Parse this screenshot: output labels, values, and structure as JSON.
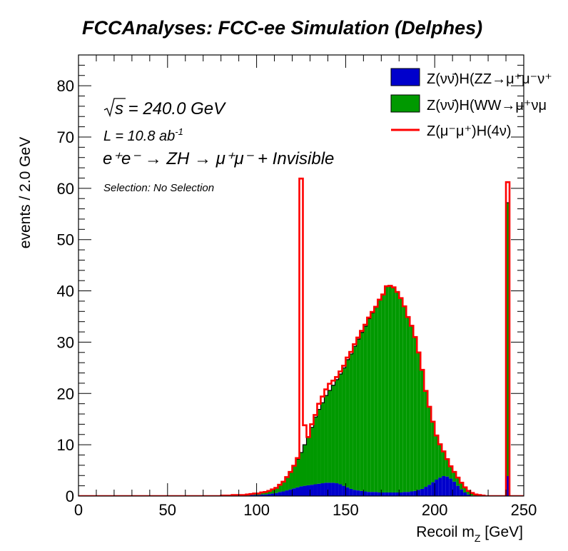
{
  "chart_data": {
    "type": "histogram",
    "title": "FCCAnalyses: FCC-ee Simulation (Delphes)",
    "xlabel_main": "Recoil m",
    "xlabel_sub": "Z",
    "xlabel_unit": " [GeV]",
    "ylabel": "events / 2.0 GeV",
    "xlim": [
      0,
      250
    ],
    "ylim": [
      0,
      86
    ],
    "x_ticks": [
      "0",
      "50",
      "100",
      "150",
      "200",
      "250"
    ],
    "y_ticks": [
      "0",
      "10",
      "20",
      "30",
      "40",
      "50",
      "60",
      "70",
      "80"
    ],
    "bin_width": 2.0,
    "stacked": true,
    "annotations": {
      "sqrt_s": "s",
      "energy": " = 240.0 GeV",
      "lumi": "L = 10.8 ab",
      "lumi_exp": "-1",
      "process": "e⁺e⁻ → ZH → μ⁺μ⁻ + Invisible",
      "selection": "Selection: No Selection"
    },
    "series": [
      {
        "name": "Z(νν̄)H(ZZ→μ⁺μ⁻ν⁺",
        "style": "fill",
        "color": "#0000cc",
        "bins": [
          [
            80,
            0.1
          ],
          [
            82,
            0.1
          ],
          [
            84,
            0.1
          ],
          [
            86,
            0.1
          ],
          [
            88,
            0.1
          ],
          [
            90,
            0.1
          ],
          [
            92,
            0.1
          ],
          [
            94,
            0.1
          ],
          [
            96,
            0.2
          ],
          [
            98,
            0.2
          ],
          [
            100,
            0.2
          ],
          [
            102,
            0.3
          ],
          [
            104,
            0.3
          ],
          [
            106,
            0.4
          ],
          [
            108,
            0.5
          ],
          [
            110,
            0.6
          ],
          [
            112,
            0.8
          ],
          [
            114,
            0.9
          ],
          [
            116,
            1.1
          ],
          [
            118,
            1.3
          ],
          [
            120,
            1.5
          ],
          [
            122,
            1.7
          ],
          [
            124,
            1.9
          ],
          [
            126,
            2.0
          ],
          [
            128,
            2.1
          ],
          [
            130,
            2.2
          ],
          [
            132,
            2.3
          ],
          [
            134,
            2.4
          ],
          [
            136,
            2.5
          ],
          [
            138,
            2.6
          ],
          [
            140,
            2.6
          ],
          [
            142,
            2.6
          ],
          [
            144,
            2.5
          ],
          [
            146,
            2.3
          ],
          [
            148,
            2.0
          ],
          [
            150,
            1.7
          ],
          [
            152,
            1.4
          ],
          [
            154,
            1.2
          ],
          [
            156,
            1.1
          ],
          [
            158,
            1.0
          ],
          [
            160,
            0.9
          ],
          [
            162,
            0.8
          ],
          [
            164,
            0.8
          ],
          [
            166,
            0.8
          ],
          [
            168,
            0.7
          ],
          [
            170,
            0.7
          ],
          [
            172,
            0.7
          ],
          [
            174,
            0.7
          ],
          [
            176,
            0.7
          ],
          [
            178,
            0.7
          ],
          [
            180,
            0.7
          ],
          [
            182,
            0.8
          ],
          [
            184,
            0.8
          ],
          [
            186,
            0.9
          ],
          [
            188,
            1.0
          ],
          [
            190,
            1.2
          ],
          [
            192,
            1.4
          ],
          [
            194,
            1.8
          ],
          [
            196,
            2.2
          ],
          [
            198,
            2.7
          ],
          [
            200,
            3.2
          ],
          [
            202,
            3.6
          ],
          [
            204,
            3.9
          ],
          [
            206,
            3.8
          ],
          [
            208,
            3.4
          ],
          [
            210,
            2.8
          ],
          [
            212,
            2.0
          ],
          [
            214,
            1.3
          ],
          [
            216,
            0.7
          ],
          [
            218,
            0.3
          ],
          [
            220,
            0.1
          ],
          [
            240,
            3.9
          ]
        ]
      },
      {
        "name": "Z(νν̄)H(WW→μ⁺νμ",
        "style": "fill",
        "color": "#009900",
        "bins": [
          [
            80,
            0.0
          ],
          [
            82,
            0.0
          ],
          [
            84,
            0.0
          ],
          [
            86,
            0.1
          ],
          [
            88,
            0.1
          ],
          [
            90,
            0.1
          ],
          [
            92,
            0.1
          ],
          [
            94,
            0.2
          ],
          [
            96,
            0.2
          ],
          [
            98,
            0.3
          ],
          [
            100,
            0.3
          ],
          [
            102,
            0.4
          ],
          [
            104,
            0.5
          ],
          [
            106,
            0.6
          ],
          [
            108,
            0.8
          ],
          [
            110,
            1.0
          ],
          [
            112,
            1.4
          ],
          [
            114,
            1.9
          ],
          [
            116,
            2.6
          ],
          [
            118,
            3.4
          ],
          [
            120,
            4.4
          ],
          [
            122,
            5.5
          ],
          [
            124,
            6.6
          ],
          [
            126,
            8.0
          ],
          [
            128,
            9.4
          ],
          [
            130,
            11.2
          ],
          [
            132,
            13.1
          ],
          [
            134,
            14.5
          ],
          [
            136,
            15.7
          ],
          [
            138,
            17.0
          ],
          [
            140,
            18.0
          ],
          [
            142,
            19.0
          ],
          [
            144,
            20.2
          ],
          [
            146,
            21.5
          ],
          [
            148,
            23.0
          ],
          [
            150,
            24.9
          ],
          [
            152,
            26.3
          ],
          [
            154,
            28.0
          ],
          [
            156,
            29.5
          ],
          [
            158,
            30.9
          ],
          [
            160,
            32.2
          ],
          [
            162,
            33.8
          ],
          [
            164,
            34.9
          ],
          [
            166,
            36.0
          ],
          [
            168,
            37.5
          ],
          [
            170,
            38.6
          ],
          [
            172,
            40.2
          ],
          [
            174,
            40.3
          ],
          [
            176,
            40.0
          ],
          [
            178,
            39.1
          ],
          [
            180,
            37.9
          ],
          [
            182,
            36.2
          ],
          [
            184,
            34.1
          ],
          [
            186,
            32.3
          ],
          [
            188,
            30.0
          ],
          [
            190,
            26.8
          ],
          [
            192,
            23.2
          ],
          [
            194,
            18.7
          ],
          [
            196,
            15.2
          ],
          [
            198,
            11.8
          ],
          [
            200,
            8.6
          ],
          [
            202,
            6.5
          ],
          [
            204,
            4.8
          ],
          [
            206,
            3.4
          ],
          [
            208,
            2.4
          ],
          [
            210,
            1.9
          ],
          [
            212,
            1.6
          ],
          [
            214,
            1.3
          ],
          [
            216,
            1.0
          ],
          [
            218,
            0.7
          ],
          [
            220,
            0.5
          ],
          [
            222,
            0.3
          ],
          [
            224,
            0.2
          ],
          [
            226,
            0.1
          ],
          [
            240,
            53.3
          ]
        ]
      },
      {
        "name": "Z(μ⁻μ⁺)H(4ν)",
        "style": "line",
        "color": "#ff0000",
        "bins": [
          [
            122,
            0.2
          ],
          [
            124,
            53.4
          ],
          [
            126,
            3.8
          ],
          [
            128,
            0.0
          ],
          [
            130,
            0.6
          ],
          [
            132,
            0.4
          ],
          [
            134,
            1.1
          ],
          [
            136,
            1.2
          ],
          [
            138,
            1.2
          ],
          [
            140,
            1.3
          ],
          [
            142,
            0.9
          ],
          [
            144,
            0.5
          ],
          [
            146,
            0.5
          ],
          [
            148,
            0.4
          ],
          [
            150,
            0.4
          ],
          [
            152,
            0.4
          ],
          [
            154,
            0.4
          ],
          [
            156,
            0.3
          ],
          [
            158,
            0.3
          ],
          [
            160,
            0.3
          ],
          [
            162,
            0.2
          ],
          [
            164,
            0.2
          ],
          [
            166,
            0.1
          ],
          [
            168,
            0.1
          ],
          [
            240,
            4.0
          ]
        ]
      }
    ],
    "legend_position": "top-right"
  }
}
